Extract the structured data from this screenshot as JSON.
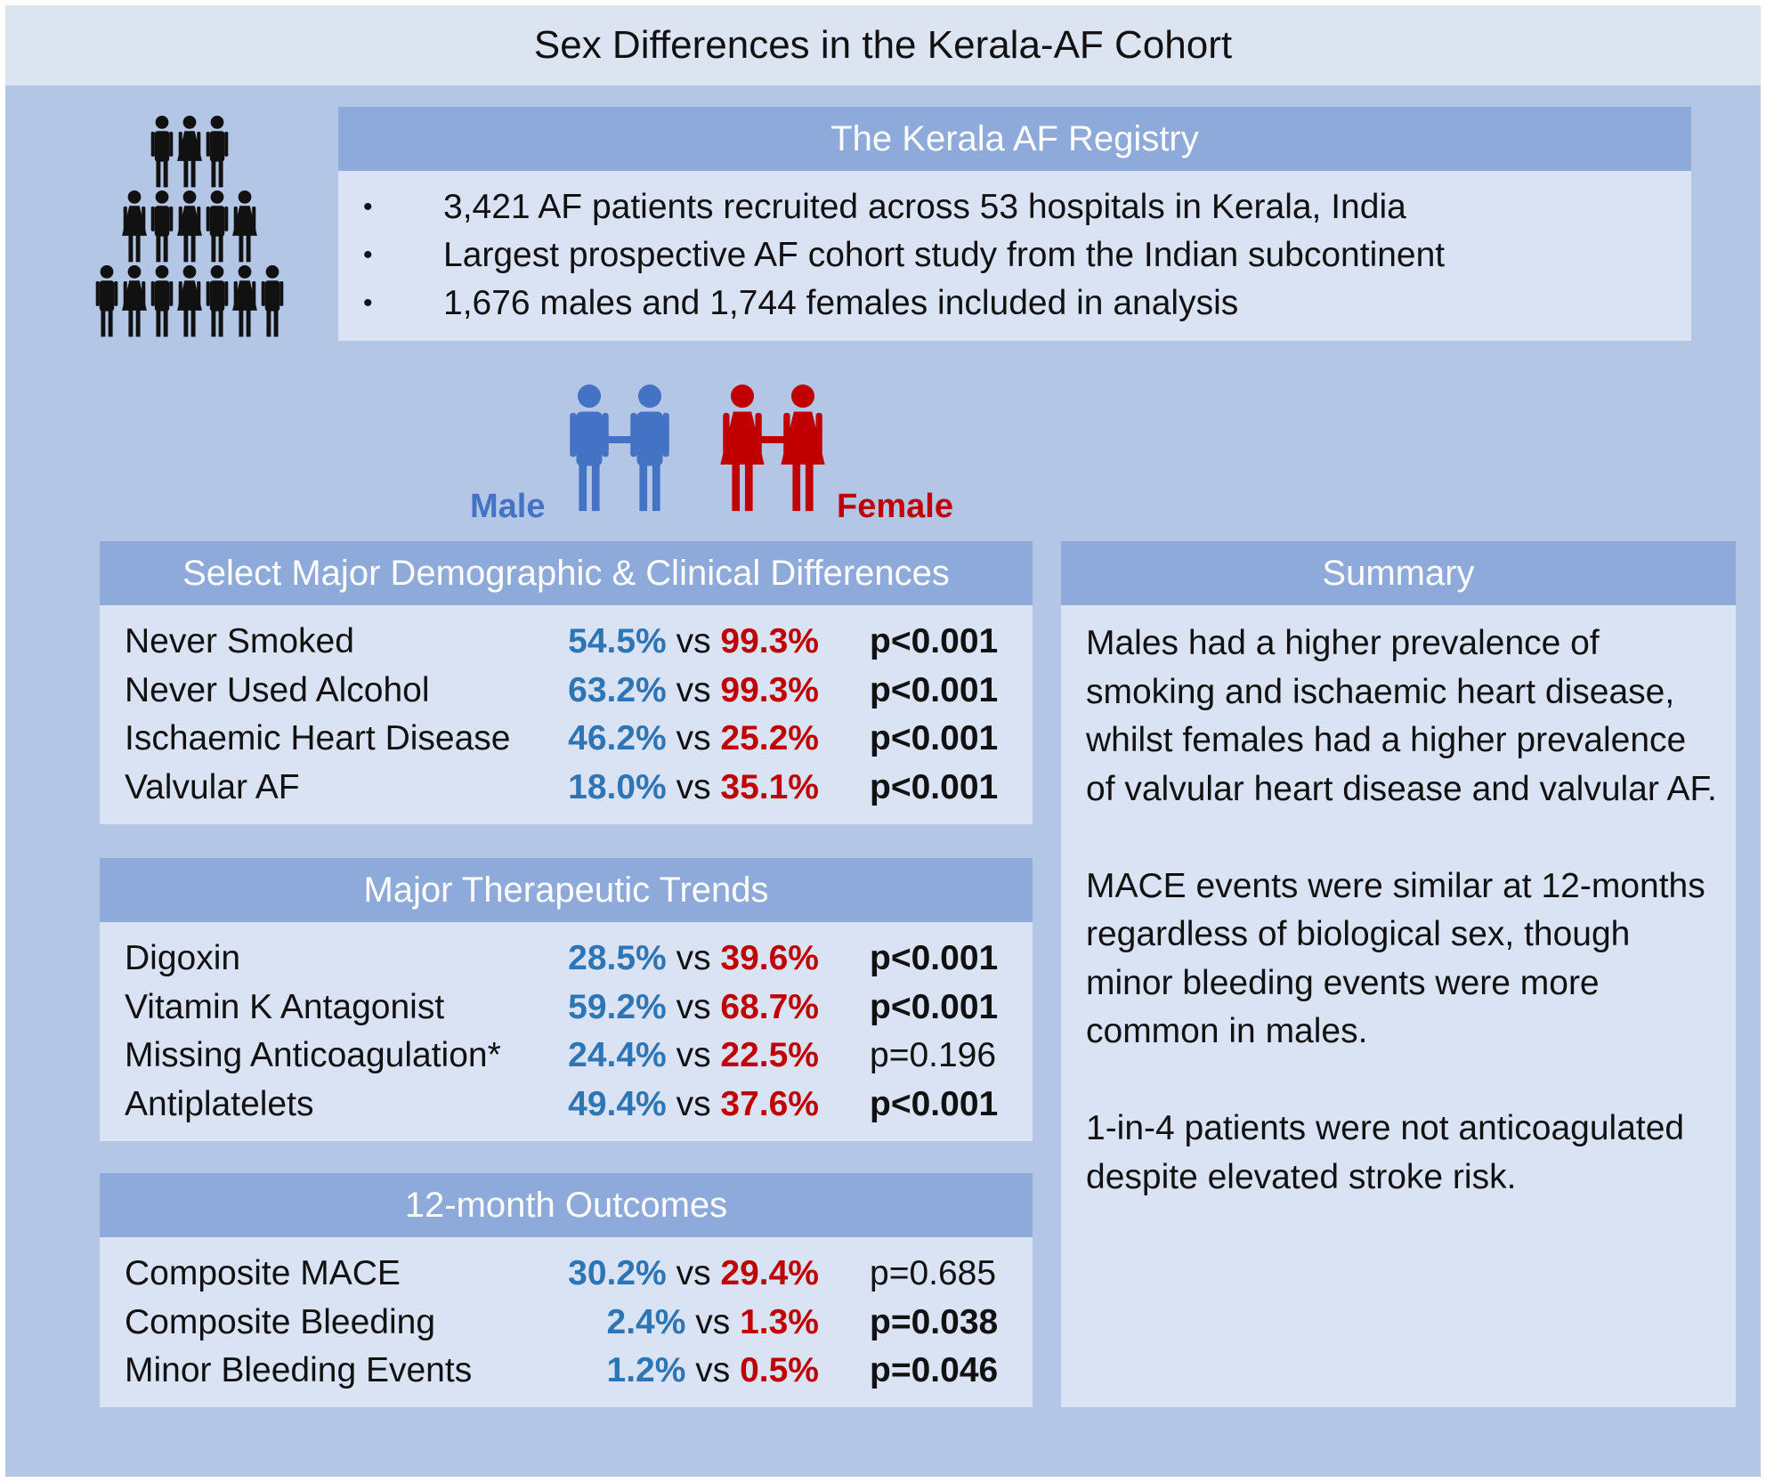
{
  "title": "Sex Differences in the Kerala-AF Cohort",
  "colors": {
    "male": "#2e75b6",
    "male_icon": "#4472c4",
    "female": "#c00000",
    "panel_header": "#8eaadb",
    "panel_body": "#dae3f3",
    "background": "#b4c6e6"
  },
  "icons": {
    "crowd": "people-crowd-icon",
    "male_pair": "male-couple-icon",
    "female_pair": "female-couple-icon"
  },
  "registry": {
    "heading": "The Kerala AF Registry",
    "bullets": [
      "3,421 AF patients recruited across 53 hospitals in Kerala, India",
      "Largest prospective AF cohort study from the Indian subcontinent",
      "1,676 males and 1,744 females included in analysis"
    ]
  },
  "legend": {
    "male": "Male",
    "female": "Female"
  },
  "vs": "vs",
  "demographics": {
    "heading": "Select Major Demographic & Clinical Differences",
    "rows": [
      {
        "label": "Never Smoked",
        "male": "54.5%",
        "female": "99.3%",
        "p": "p<0.001",
        "sig": true
      },
      {
        "label": "Never Used Alcohol",
        "male": "63.2%",
        "female": "99.3%",
        "p": "p<0.001",
        "sig": true
      },
      {
        "label": "Ischaemic Heart Disease",
        "male": "46.2%",
        "female": "25.2%",
        "p": "p<0.001",
        "sig": true
      },
      {
        "label": "Valvular AF",
        "male": "18.0%",
        "female": "35.1%",
        "p": "p<0.001",
        "sig": true
      }
    ]
  },
  "therapeutic": {
    "heading": "Major Therapeutic Trends",
    "rows": [
      {
        "label": "Digoxin",
        "male": "28.5%",
        "female": "39.6%",
        "p": "p<0.001",
        "sig": true
      },
      {
        "label": "Vitamin K Antagonist",
        "male": "59.2%",
        "female": "68.7%",
        "p": "p<0.001",
        "sig": true
      },
      {
        "label": "Missing Anticoagulation*",
        "male": "24.4%",
        "female": "22.5%",
        "p": "p=0.196",
        "sig": false
      },
      {
        "label": "Antiplatelets",
        "male": "49.4%",
        "female": "37.6%",
        "p": "p<0.001",
        "sig": true
      }
    ]
  },
  "outcomes": {
    "heading": "12-month Outcomes",
    "rows": [
      {
        "label": "Composite MACE",
        "male": "30.2%",
        "female": "29.4%",
        "p": "p=0.685",
        "sig": false
      },
      {
        "label": "Composite Bleeding",
        "male": "2.4%",
        "female": "1.3%",
        "p": "p=0.038",
        "sig": true
      },
      {
        "label": "Minor Bleeding Events",
        "male": "1.2%",
        "female": "0.5%",
        "p": "p=0.046",
        "sig": true
      }
    ]
  },
  "summary": {
    "heading": "Summary",
    "paragraphs": [
      "Males had a higher prevalence of smoking and ischaemic heart disease, whilst females had a higher prevalence of valvular heart disease and valvular AF.",
      "MACE events were similar at 12-months regardless of biological sex, though minor bleeding events were more common in males.",
      "1-in-4 patients were not anticoagulated despite elevated stroke risk."
    ]
  }
}
